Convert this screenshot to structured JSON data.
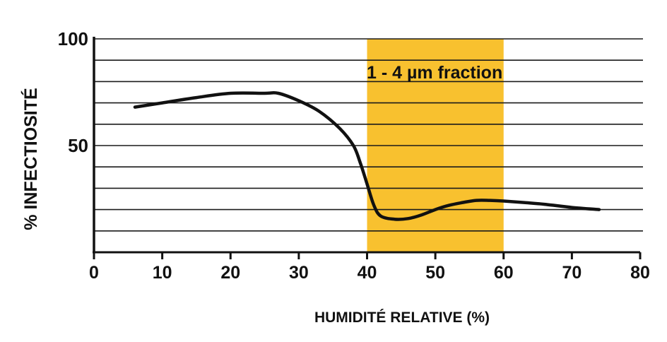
{
  "chart_data": {
    "type": "line",
    "title": "",
    "xlabel": "HUMIDITÉ RELATIVE (%)",
    "ylabel": "% INFECTIOSITÉ",
    "xlim": [
      0,
      80
    ],
    "ylim": [
      0,
      100
    ],
    "x_ticks": [
      0,
      10,
      20,
      30,
      40,
      50,
      60,
      70,
      80
    ],
    "x_tick_labels": [
      "0",
      "10",
      "20",
      "30",
      "40",
      "50",
      "60",
      "70",
      "80"
    ],
    "y_ticks": [
      50,
      100
    ],
    "y_tick_labels": [
      "50",
      "100"
    ],
    "grid": "horizontal",
    "highlight_band": {
      "x_start": 40,
      "x_end": 60,
      "label": "1 - 4 µm fraction",
      "color": "#f8c12f"
    },
    "series": [
      {
        "color": "#111111",
        "x": [
          6,
          10,
          15,
          20,
          25,
          27,
          30,
          33,
          36,
          38,
          39,
          40,
          41,
          42,
          44,
          46,
          48,
          50,
          52,
          54,
          56,
          58,
          60,
          63,
          66,
          70,
          74
        ],
        "y": [
          68,
          70,
          72.5,
          74.5,
          74.5,
          74.5,
          71,
          66,
          58,
          50,
          42,
          32,
          22,
          17,
          15.5,
          15.8,
          17.5,
          20,
          22,
          23.3,
          24.3,
          24.3,
          24,
          23.3,
          22.5,
          21,
          20
        ]
      }
    ]
  }
}
